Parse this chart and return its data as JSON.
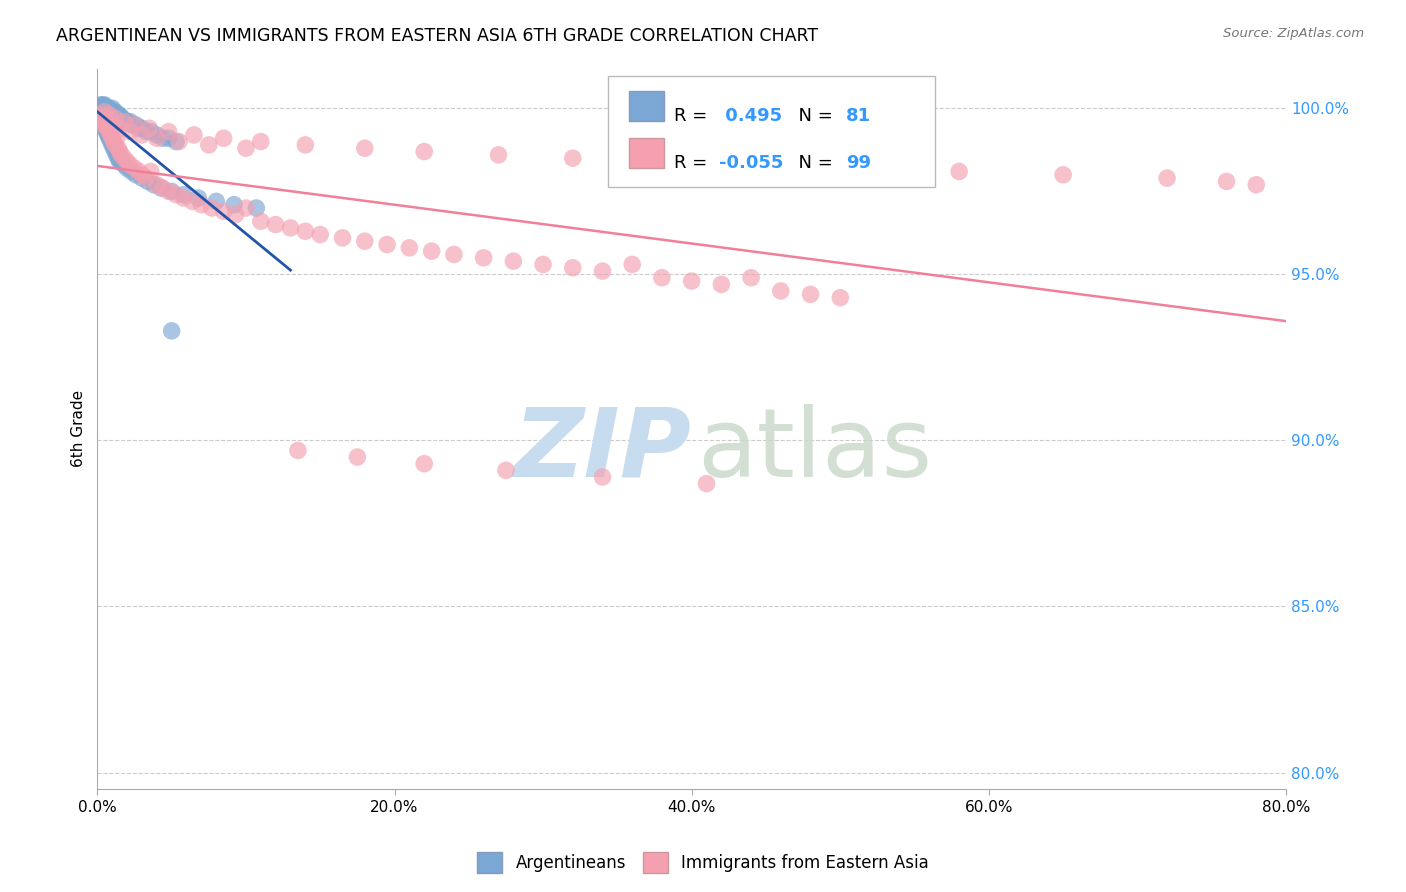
{
  "title": "ARGENTINEAN VS IMMIGRANTS FROM EASTERN ASIA 6TH GRADE CORRELATION CHART",
  "source": "Source: ZipAtlas.com",
  "ylabel": "6th Grade",
  "xlim": [
    0.0,
    0.8
  ],
  "ylim": [
    0.795,
    1.012
  ],
  "xtick_labels": [
    "0.0%",
    "",
    "20.0%",
    "",
    "40.0%",
    "",
    "60.0%",
    "",
    "80.0%"
  ],
  "xtick_vals": [
    0.0,
    0.1,
    0.2,
    0.3,
    0.4,
    0.5,
    0.6,
    0.7,
    0.8
  ],
  "ytick_labels": [
    "100.0%",
    "95.0%",
    "90.0%",
    "85.0%",
    "80.0%"
  ],
  "ytick_vals": [
    1.0,
    0.95,
    0.9,
    0.85,
    0.8
  ],
  "blue_color": "#7BA7D4",
  "pink_color": "#F4A0B0",
  "blue_line_color": "#2255AA",
  "pink_line_color": "#F08098",
  "legend_R_blue": "0.495",
  "legend_N_blue": "81",
  "legend_R_pink": "-0.055",
  "legend_N_pink": "99",
  "blue_scatter_x": [
    0.001,
    0.002,
    0.002,
    0.003,
    0.003,
    0.003,
    0.004,
    0.004,
    0.004,
    0.005,
    0.005,
    0.005,
    0.006,
    0.006,
    0.006,
    0.007,
    0.007,
    0.008,
    0.008,
    0.008,
    0.009,
    0.009,
    0.01,
    0.01,
    0.01,
    0.011,
    0.011,
    0.012,
    0.012,
    0.013,
    0.013,
    0.014,
    0.015,
    0.015,
    0.016,
    0.017,
    0.018,
    0.019,
    0.02,
    0.022,
    0.024,
    0.026,
    0.028,
    0.03,
    0.033,
    0.036,
    0.04,
    0.044,
    0.048,
    0.053,
    0.001,
    0.002,
    0.003,
    0.004,
    0.005,
    0.006,
    0.007,
    0.008,
    0.009,
    0.01,
    0.011,
    0.012,
    0.013,
    0.014,
    0.015,
    0.016,
    0.018,
    0.02,
    0.023,
    0.026,
    0.03,
    0.034,
    0.038,
    0.043,
    0.05,
    0.058,
    0.068,
    0.08,
    0.092,
    0.107,
    0.05
  ],
  "blue_scatter_y": [
    0.999,
    1.0,
    1.001,
    1.001,
    1.0,
    0.999,
    1.001,
    1.0,
    0.999,
    1.001,
    1.0,
    0.999,
    1.0,
    0.999,
    0.998,
    1.0,
    0.999,
    1.0,
    0.999,
    0.998,
    0.999,
    0.998,
    1.0,
    0.999,
    0.998,
    0.999,
    0.998,
    0.999,
    0.998,
    0.998,
    0.997,
    0.998,
    0.998,
    0.997,
    0.997,
    0.997,
    0.996,
    0.996,
    0.996,
    0.996,
    0.995,
    0.995,
    0.994,
    0.994,
    0.993,
    0.993,
    0.992,
    0.991,
    0.991,
    0.99,
    0.998,
    0.997,
    0.996,
    0.995,
    0.994,
    0.993,
    0.992,
    0.991,
    0.99,
    0.989,
    0.988,
    0.987,
    0.986,
    0.985,
    0.984,
    0.984,
    0.983,
    0.982,
    0.981,
    0.98,
    0.979,
    0.978,
    0.977,
    0.976,
    0.975,
    0.974,
    0.973,
    0.972,
    0.971,
    0.97,
    0.933
  ],
  "pink_scatter_x": [
    0.001,
    0.002,
    0.003,
    0.004,
    0.005,
    0.005,
    0.006,
    0.007,
    0.008,
    0.009,
    0.01,
    0.011,
    0.012,
    0.013,
    0.014,
    0.015,
    0.016,
    0.018,
    0.02,
    0.022,
    0.025,
    0.028,
    0.03,
    0.033,
    0.036,
    0.04,
    0.044,
    0.048,
    0.053,
    0.058,
    0.064,
    0.07,
    0.077,
    0.085,
    0.093,
    0.1,
    0.11,
    0.12,
    0.13,
    0.14,
    0.15,
    0.165,
    0.18,
    0.195,
    0.21,
    0.225,
    0.24,
    0.26,
    0.28,
    0.3,
    0.32,
    0.34,
    0.36,
    0.38,
    0.4,
    0.42,
    0.44,
    0.46,
    0.48,
    0.5,
    0.005,
    0.008,
    0.012,
    0.018,
    0.025,
    0.035,
    0.048,
    0.065,
    0.085,
    0.11,
    0.14,
    0.18,
    0.22,
    0.27,
    0.32,
    0.38,
    0.44,
    0.51,
    0.58,
    0.65,
    0.72,
    0.76,
    0.78,
    0.003,
    0.006,
    0.01,
    0.015,
    0.022,
    0.03,
    0.04,
    0.055,
    0.075,
    0.1,
    0.135,
    0.175,
    0.22,
    0.275,
    0.34,
    0.41
  ],
  "pink_scatter_y": [
    0.998,
    0.997,
    0.996,
    0.995,
    0.997,
    0.996,
    0.995,
    0.994,
    0.993,
    0.992,
    0.991,
    0.99,
    0.989,
    0.991,
    0.988,
    0.987,
    0.986,
    0.985,
    0.984,
    0.983,
    0.982,
    0.981,
    0.98,
    0.979,
    0.981,
    0.977,
    0.976,
    0.975,
    0.974,
    0.973,
    0.972,
    0.971,
    0.97,
    0.969,
    0.968,
    0.97,
    0.966,
    0.965,
    0.964,
    0.963,
    0.962,
    0.961,
    0.96,
    0.959,
    0.958,
    0.957,
    0.956,
    0.955,
    0.954,
    0.953,
    0.952,
    0.951,
    0.953,
    0.949,
    0.948,
    0.947,
    0.949,
    0.945,
    0.944,
    0.943,
    0.999,
    0.998,
    0.997,
    0.996,
    0.995,
    0.994,
    0.993,
    0.992,
    0.991,
    0.99,
    0.989,
    0.988,
    0.987,
    0.986,
    0.985,
    0.984,
    0.983,
    0.982,
    0.981,
    0.98,
    0.979,
    0.978,
    0.977,
    0.997,
    0.996,
    0.995,
    0.994,
    0.993,
    0.992,
    0.991,
    0.99,
    0.989,
    0.988,
    0.897,
    0.895,
    0.893,
    0.891,
    0.889,
    0.887
  ]
}
